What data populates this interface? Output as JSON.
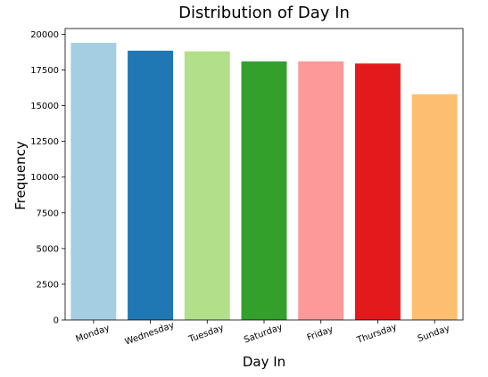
{
  "chart_data": {
    "type": "bar",
    "title": "Distribution of Day In",
    "xlabel": "Day In",
    "ylabel": "Frequency",
    "categories": [
      "Monday",
      "Wednesday",
      "Tuesday",
      "Saturday",
      "Friday",
      "Thursday",
      "Sunday"
    ],
    "values": [
      19400,
      18850,
      18800,
      18100,
      18100,
      17950,
      15800
    ],
    "colors": [
      "#a6cee3",
      "#1f78b4",
      "#b2df8a",
      "#33a02c",
      "#fb9a99",
      "#e31a1c",
      "#fdbf6f"
    ],
    "ylim": [
      0,
      20400
    ],
    "yticks": [
      0,
      2500,
      5000,
      7500,
      10000,
      12500,
      15000,
      17500,
      20000
    ],
    "grid": false,
    "legend": "none"
  }
}
